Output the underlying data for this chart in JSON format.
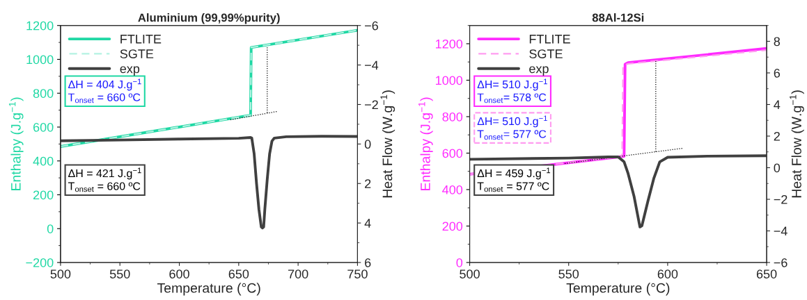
{
  "chart_data": [
    {
      "type": "line",
      "title": "Aluminium (99,99%purity)",
      "xlabel": "Temperature (°C)",
      "ylabel": "Enthalpy (J.g$^{−1}$)",
      "y2label": "Heat Flow (W.g$^{−1}$)",
      "xlim": [
        500,
        750
      ],
      "xticks": [
        500,
        550,
        600,
        650,
        700,
        750
      ],
      "ylim": [
        -200,
        1200
      ],
      "yticks": [
        -200,
        0,
        200,
        400,
        600,
        800,
        1000,
        1200
      ],
      "y2lim": [
        6,
        -6
      ],
      "y2ticks": [
        6,
        4,
        2,
        0,
        -2,
        -4,
        -6
      ],
      "legend": "top left",
      "grid": false,
      "series": [
        {
          "name": "FTLITE",
          "color": "#1fd8a4",
          "line_style": "solid",
          "x": [
            500,
            660,
            660.5,
            750
          ],
          "values": [
            485,
            670,
            1070,
            1172
          ]
        },
        {
          "name": "SGTE",
          "color": "#b4f2e2",
          "line_style": "dashed",
          "x": [
            500,
            660,
            660.5,
            750
          ],
          "values": [
            485,
            670,
            1070,
            1172
          ]
        },
        {
          "name": "exp",
          "color": "#404040",
          "line_style": "solid",
          "axis": "y2",
          "x": [
            500,
            550,
            600,
            650,
            660,
            661,
            663,
            665,
            667,
            669,
            670,
            671,
            672,
            674,
            676,
            678,
            680,
            690,
            720,
            750
          ],
          "values": [
            -0.16,
            -0.2,
            -0.25,
            -0.29,
            -0.33,
            -0.3,
            0.5,
            2.0,
            3.3,
            4.2,
            4.25,
            4.2,
            3.3,
            1.8,
            0.5,
            -0.15,
            -0.3,
            -0.37,
            -0.39,
            -0.38
          ]
        },
        {
          "color": "#000000",
          "line_style": "dotted",
          "x": [
            643,
            683
          ],
          "values": [
            643,
            693
          ]
        },
        {
          "color": "#000000",
          "line_style": "dotted",
          "x": [
            674,
            674
          ],
          "values": [
            685,
            1077
          ]
        }
      ],
      "annotations": [
        "ΔH = 404 J.g$^{−1}$\nT$_{onset}$ = 660 ºC",
        "ΔH = 421 J.g$^{−1}$\nT$_{onset}$ = 660 ºC"
      ]
    },
    {
      "type": "line",
      "title": "88Al-12Si",
      "xlabel": "Temperature (°C)",
      "ylabel": "Enthalpy (J.g$^{−1}$)",
      "y2label": "Heat Flow (W.g$^{−1}$)",
      "xlim": [
        500,
        650
      ],
      "xticks": [
        500,
        550,
        600,
        650
      ],
      "ylim": [
        0,
        1300
      ],
      "yticks": [
        0,
        200,
        400,
        600,
        800,
        1000,
        1200
      ],
      "y2lim": [
        -6,
        9
      ],
      "y2ticks": [
        -6,
        -4,
        -2,
        0,
        2,
        4,
        6,
        8
      ],
      "legend": "top left",
      "grid": false,
      "series": [
        {
          "name": "FTLITE",
          "color": "#ff2bff",
          "line_style": "solid",
          "x": [
            500,
            578,
            578.5,
            580,
            650
          ],
          "values": [
            484,
            583,
            1088,
            1096,
            1174
          ]
        },
        {
          "name": "SGTE",
          "color": "#ff9cf0",
          "line_style": "dashed",
          "x": [
            500,
            577,
            577.5,
            580,
            650
          ],
          "values": [
            484,
            582,
            1080,
            1090,
            1165
          ]
        },
        {
          "name": "exp",
          "color": "#404040",
          "line_style": "solid",
          "axis": "y2",
          "x": [
            500,
            550,
            570,
            575,
            578,
            580,
            583,
            586,
            587,
            590,
            593,
            596,
            600,
            620,
            650
          ],
          "values": [
            0.53,
            0.61,
            0.68,
            0.68,
            0.37,
            -0.36,
            -1.8,
            -3.75,
            -3.67,
            -2.13,
            -0.68,
            0.37,
            0.66,
            0.73,
            0.76
          ]
        },
        {
          "color": "#000000",
          "line_style": "dotted",
          "x": [
            548,
            608
          ],
          "values": [
            543,
            627
          ]
        },
        {
          "color": "#000000",
          "line_style": "dotted",
          "x": [
            594,
            594
          ],
          "values": [
            608,
            1108
          ]
        }
      ],
      "annotations": [
        "ΔH= 510 J.g$^{−1}$\nT$_{onset}$= 578 ºC",
        "ΔH= 510 J.g$^{−1}$\nT$_{onset}$= 577 ºC",
        "ΔH = 459 J.g$^{−1}$\nT$_{onset}$ = 577 ºC"
      ]
    }
  ]
}
